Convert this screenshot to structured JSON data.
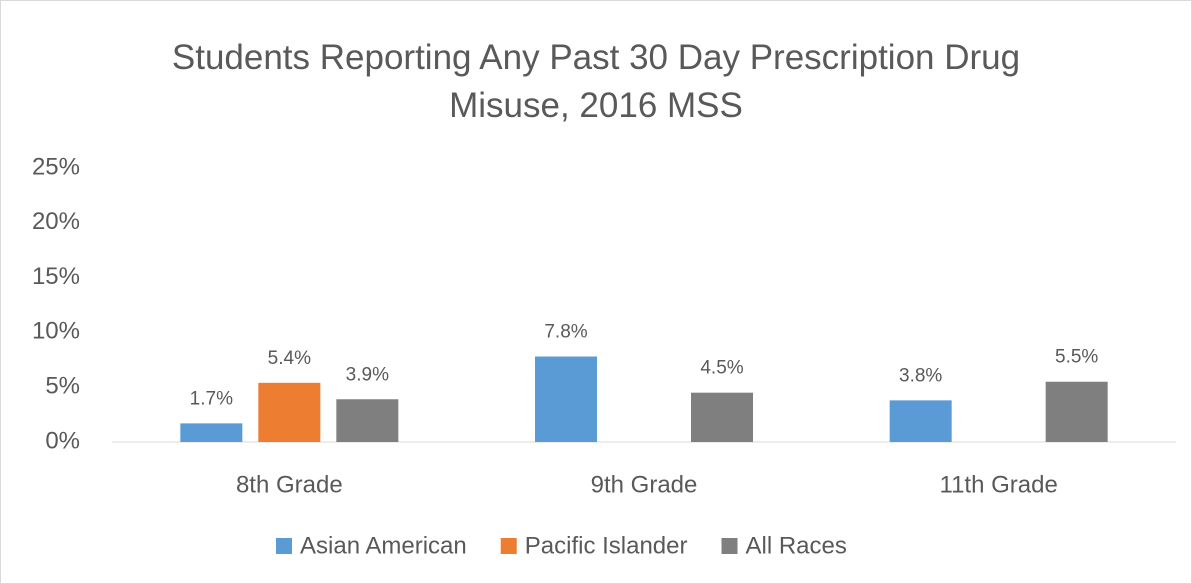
{
  "chart_data": {
    "type": "bar",
    "title": "Students Reporting Any Past 30 Day Prescription Drug Misuse, 2016 MSS",
    "categories": [
      "8th Grade",
      "9th Grade",
      "11th Grade"
    ],
    "series": [
      {
        "name": "Asian American",
        "color": "#5b9bd5",
        "values": [
          1.7,
          7.8,
          3.8
        ],
        "value_labels": [
          "1.7%",
          "7.8%",
          "3.8%"
        ]
      },
      {
        "name": "Pacific Islander",
        "color": "#ed7d31",
        "values": [
          5.4,
          null,
          null
        ],
        "value_labels": [
          "5.4%",
          null,
          null
        ]
      },
      {
        "name": "All Races",
        "color": "#7f7f7f",
        "values": [
          3.9,
          4.5,
          5.5
        ],
        "value_labels": [
          "3.9%",
          "4.5%",
          "5.5%"
        ]
      }
    ],
    "ylim": [
      0,
      25
    ],
    "yticks": [
      {
        "value": 0,
        "label": "0%"
      },
      {
        "value": 5,
        "label": "5%"
      },
      {
        "value": 10,
        "label": "10%"
      },
      {
        "value": 15,
        "label": "15%"
      },
      {
        "value": 20,
        "label": "20%"
      },
      {
        "value": 25,
        "label": "25%"
      }
    ],
    "grid": false,
    "legend": "bottom"
  }
}
